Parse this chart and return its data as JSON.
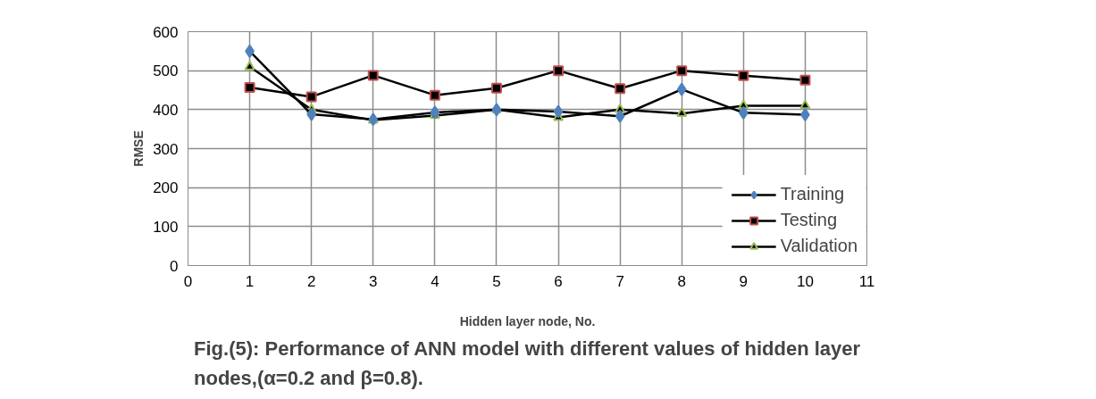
{
  "chart_data": {
    "type": "line",
    "title": "Fig.(5): Performance of ANN model with different values of hidden layer nodes,(α=0.2 and β=0.8).",
    "xlabel": "Hidden layer node, No.",
    "ylabel": "RMSE",
    "x": [
      1,
      2,
      3,
      4,
      5,
      6,
      7,
      8,
      9,
      10
    ],
    "series": [
      {
        "name": "Training",
        "color": "#4f81bd",
        "marker": "diamond",
        "values": [
          550,
          388,
          375,
          393,
          400,
          395,
          383,
          452,
          392,
          387
        ]
      },
      {
        "name": "Testing",
        "color": "#c0504d",
        "marker": "square",
        "values": [
          457,
          433,
          488,
          437,
          455,
          500,
          454,
          500,
          487,
          476
        ]
      },
      {
        "name": "Validation",
        "color": "#9bbb59",
        "marker": "triangle",
        "values": [
          510,
          400,
          373,
          385,
          400,
          380,
          400,
          390,
          410,
          410
        ]
      }
    ],
    "xlim": [
      0,
      11
    ],
    "xticks": [
      0,
      1,
      2,
      3,
      4,
      5,
      6,
      7,
      8,
      9,
      10,
      11
    ],
    "ylim": [
      0,
      600
    ],
    "yticks": [
      0,
      100,
      200,
      300,
      400,
      500,
      600
    ],
    "grid": true,
    "legend": "right"
  }
}
